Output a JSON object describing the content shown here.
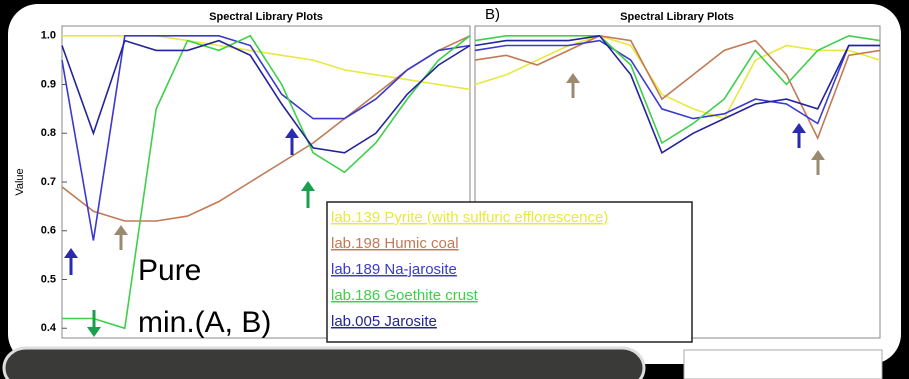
{
  "chart_data": [
    {
      "type": "line",
      "title": "Spectral Library Plots",
      "y_label": "Value",
      "annotation": [
        "Pure",
        "min.(A, B)"
      ],
      "ylim": [
        0.38,
        1.02
      ],
      "yticks": [
        0.4,
        0.5,
        0.6,
        0.7,
        0.8,
        0.9,
        {
          "value": 1,
          "label": "1.0"
        }
      ],
      "series": [
        {
          "name": "lab.139 Pyrite (with sulfuric efflorescence)",
          "color": "#e8e840",
          "values": [
            1,
            1,
            1,
            1,
            0.99,
            0.98,
            0.97,
            0.96,
            0.95,
            0.93,
            0.92,
            0.91,
            0.9,
            0.89
          ]
        },
        {
          "name": "lab.198 Humic coal",
          "color": "#c27a56",
          "values": [
            0.69,
            0.64,
            0.62,
            0.62,
            0.63,
            0.66,
            0.7,
            0.74,
            0.78,
            0.83,
            0.88,
            0.93,
            0.97,
            1
          ]
        },
        {
          "name": "lab.189 Na-jarosite",
          "color": "#3a3acf",
          "values": [
            0.95,
            0.58,
            1,
            1,
            1,
            1,
            0.98,
            0.88,
            0.83,
            0.83,
            0.87,
            0.93,
            0.97,
            0.98
          ]
        },
        {
          "name": "lab.186 Goethite crust",
          "color": "#3fcf4a",
          "values": [
            0.42,
            0.42,
            0.4,
            0.85,
            0.99,
            0.97,
            1,
            0.9,
            0.76,
            0.72,
            0.78,
            0.87,
            0.95,
            1
          ]
        },
        {
          "name": "lab.005 Jarosite",
          "color": "#24249a",
          "values": [
            0.98,
            0.8,
            0.99,
            0.97,
            0.97,
            0.99,
            0.96,
            0.86,
            0.77,
            0.76,
            0.8,
            0.88,
            0.94,
            0.98
          ]
        }
      ]
    },
    {
      "type": "line",
      "title": "Spectral Library Plots",
      "label": "B)",
      "ylim": [
        0.38,
        1.02
      ],
      "series": [
        {
          "color": "#e8e840",
          "values": [
            0.9,
            0.92,
            0.95,
            0.98,
            1,
            0.98,
            0.88,
            0.85,
            0.83,
            0.95,
            0.98,
            0.97,
            0.97,
            0.95
          ]
        },
        {
          "color": "#c27a56",
          "values": [
            0.95,
            0.96,
            0.94,
            0.97,
            1,
            0.99,
            0.87,
            0.92,
            0.97,
            0.99,
            0.92,
            0.79,
            0.96,
            0.97
          ]
        },
        {
          "color": "#3a3acf",
          "values": [
            0.97,
            0.98,
            0.98,
            0.98,
            0.99,
            0.95,
            0.85,
            0.83,
            0.84,
            0.87,
            0.86,
            0.82,
            0.98,
            0.98
          ]
        },
        {
          "color": "#3fcf4a",
          "values": [
            0.99,
            1,
            1,
            1,
            1,
            0.94,
            0.78,
            0.82,
            0.87,
            0.97,
            0.9,
            0.97,
            1,
            0.99
          ]
        },
        {
          "color": "#24249a",
          "values": [
            0.98,
            0.99,
            0.99,
            0.99,
            1,
            0.92,
            0.76,
            0.8,
            0.83,
            0.86,
            0.87,
            0.85,
            0.98,
            0.98
          ]
        }
      ]
    }
  ]
}
